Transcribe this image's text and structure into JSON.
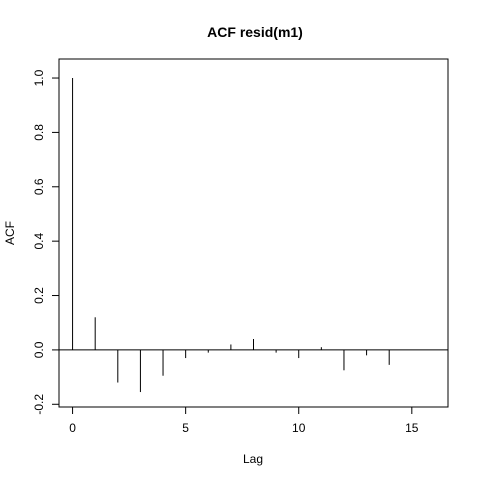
{
  "chart_data": {
    "type": "bar",
    "title": "ACF resid(m1)",
    "xlabel": "Lag",
    "ylabel": "ACF",
    "xlim": [
      -0.6,
      16.6
    ],
    "ylim": [
      -0.21,
      1.07
    ],
    "x_ticks": [
      0,
      5,
      10,
      15
    ],
    "x_tick_labels": [
      "0",
      "5",
      "10",
      "15"
    ],
    "y_ticks": [
      -0.2,
      0.0,
      0.2,
      0.4,
      0.6,
      0.8,
      1.0
    ],
    "y_tick_labels": [
      "-0.2",
      "0.0",
      "0.2",
      "0.4",
      "0.6",
      "0.8",
      "1.0"
    ],
    "grid": false,
    "zero_line": true,
    "series": [
      {
        "x": [
          0,
          1,
          2,
          3,
          4,
          5,
          6,
          7,
          8,
          9,
          10,
          11,
          12,
          13,
          14
        ],
        "values": [
          1.0,
          0.12,
          -0.12,
          -0.155,
          -0.095,
          -0.03,
          -0.01,
          0.02,
          0.04,
          -0.01,
          -0.03,
          0.01,
          -0.075,
          -0.02,
          -0.055
        ]
      }
    ]
  }
}
